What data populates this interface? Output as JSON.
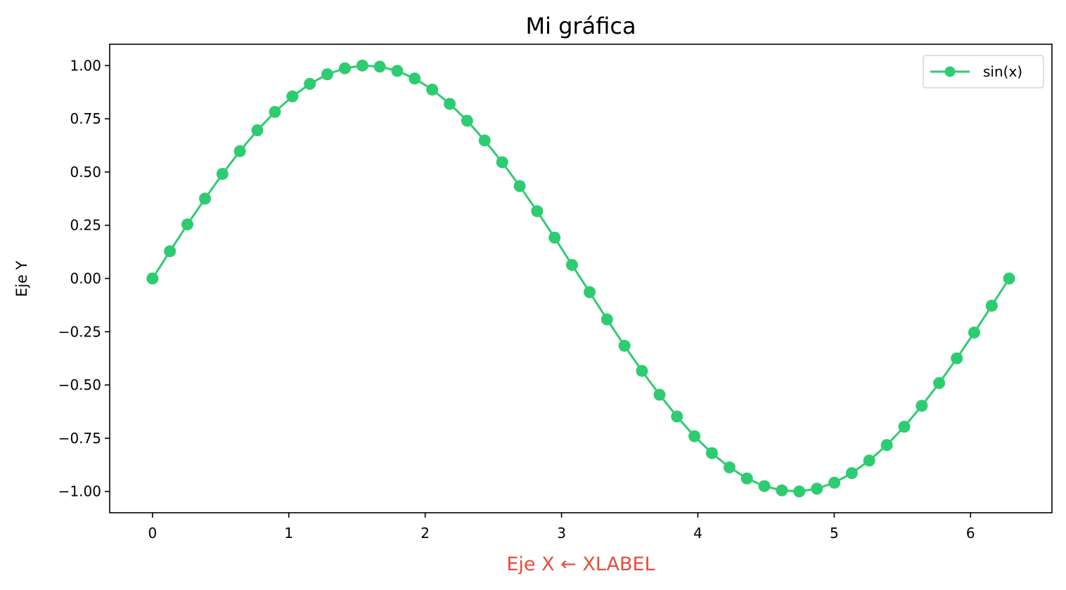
{
  "chart_data": {
    "type": "line",
    "title": "Mi gráfica",
    "xlabel": "Eje X ← XLABEL",
    "ylabel": "Eje Y",
    "xlim": [
      -0.314,
      6.597
    ],
    "ylim": [
      -1.1,
      1.1
    ],
    "x_ticks": [
      0,
      1,
      2,
      3,
      4,
      5,
      6
    ],
    "x_tick_labels": [
      "0",
      "1",
      "2",
      "3",
      "4",
      "5",
      "6"
    ],
    "y_ticks": [
      1.0,
      0.75,
      0.5,
      0.25,
      0.0,
      -0.25,
      -0.5,
      -0.75,
      -1.0
    ],
    "y_tick_labels": [
      "1.00",
      "0.75",
      "0.50",
      "0.25",
      "0.00",
      "−0.25",
      "−0.50",
      "−0.75",
      "−1.00"
    ],
    "grid": false,
    "legend_position": "top-right",
    "series": [
      {
        "name": "sin(x)",
        "color": "#2ecc71",
        "marker": "circle",
        "x": [
          0.0,
          0.128,
          0.256,
          0.385,
          0.513,
          0.641,
          0.769,
          0.898,
          1.026,
          1.154,
          1.282,
          1.411,
          1.539,
          1.667,
          1.795,
          1.923,
          2.052,
          2.18,
          2.308,
          2.436,
          2.565,
          2.693,
          2.821,
          2.949,
          3.077,
          3.206,
          3.334,
          3.462,
          3.59,
          3.719,
          3.847,
          3.975,
          4.103,
          4.232,
          4.36,
          4.488,
          4.616,
          4.744,
          4.873,
          5.001,
          5.129,
          5.257,
          5.386,
          5.514,
          5.642,
          5.77,
          5.899,
          6.027,
          6.155,
          6.283
        ],
        "y": [
          0.0,
          0.128,
          0.254,
          0.375,
          0.491,
          0.598,
          0.696,
          0.782,
          0.855,
          0.914,
          0.959,
          0.987,
          1.0,
          0.995,
          0.975,
          0.939,
          0.887,
          0.82,
          0.741,
          0.648,
          0.546,
          0.434,
          0.316,
          0.192,
          0.064,
          -0.064,
          -0.192,
          -0.316,
          -0.434,
          -0.546,
          -0.648,
          -0.741,
          -0.82,
          -0.887,
          -0.939,
          -0.975,
          -0.995,
          -1.0,
          -0.987,
          -0.959,
          -0.914,
          -0.855,
          -0.782,
          -0.696,
          -0.598,
          -0.491,
          -0.375,
          -0.254,
          -0.128,
          0.0
        ]
      }
    ],
    "colors": {
      "xlabel": "#e74c3c",
      "frame": "#000000",
      "legend_border": "#cccccc"
    }
  }
}
